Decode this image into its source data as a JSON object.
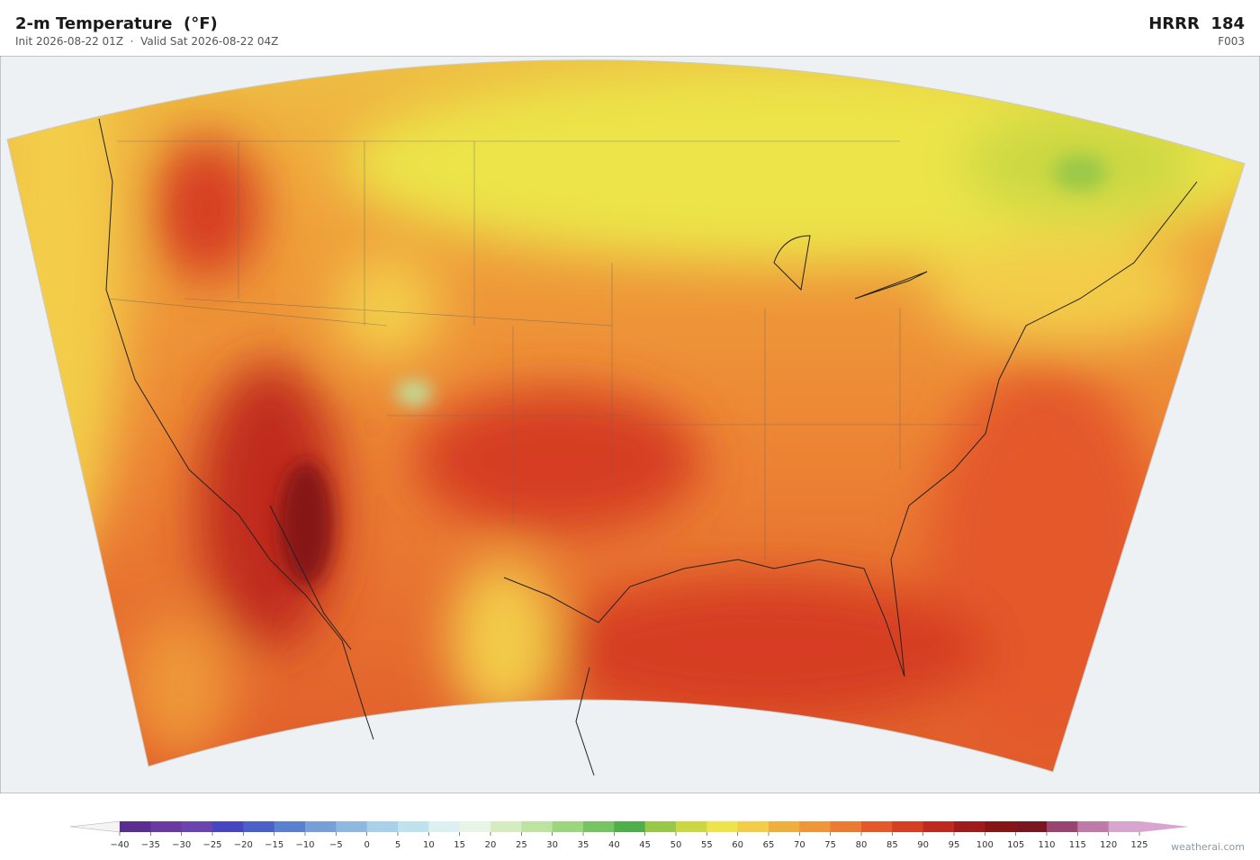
{
  "header": {
    "title": "2-m Temperature  (°F)",
    "subtitle": "Init 2026-08-22 01Z  ·  Valid Sat 2026-08-22 04Z",
    "model": "HRRR  184",
    "forecast_hour": "F003"
  },
  "colorbar": {
    "ticks": [
      {
        "value": -40,
        "label": "−40"
      },
      {
        "value": -35,
        "label": "−35"
      },
      {
        "value": -30,
        "label": "−30"
      },
      {
        "value": -25,
        "label": "−25"
      },
      {
        "value": -20,
        "label": "−20"
      },
      {
        "value": -15,
        "label": "−15"
      },
      {
        "value": -10,
        "label": "−10"
      },
      {
        "value": -5,
        "label": "−5"
      },
      0,
      5,
      10,
      15,
      20,
      25,
      30,
      35,
      40,
      45,
      50,
      55,
      60,
      65,
      70,
      75,
      80,
      85,
      90,
      95,
      100,
      105,
      110,
      115,
      120,
      125
    ],
    "colors": [
      "#5a2d91",
      "#6a3aa0",
      "#6b44b0",
      "#4546c0",
      "#4a5fc8",
      "#5a80d0",
      "#77a0d8",
      "#8fb8e0",
      "#a8d0e8",
      "#c0e2ee",
      "#dcf0f2",
      "#e6f5e6",
      "#d4ecc0",
      "#bde3a0",
      "#9bd67e",
      "#74c462",
      "#4caf4a",
      "#98c848",
      "#cbd842",
      "#ece44a",
      "#f3cc48",
      "#f0ae3c",
      "#ee9638",
      "#eb7a32",
      "#e4582a",
      "#d63e22",
      "#c02a1e",
      "#a01c1c",
      "#861616",
      "#7a1620",
      "#9a4472",
      "#c07aaa",
      "#d8a4d0"
    ]
  },
  "footer": {
    "watermark": "weatherai.com"
  }
}
